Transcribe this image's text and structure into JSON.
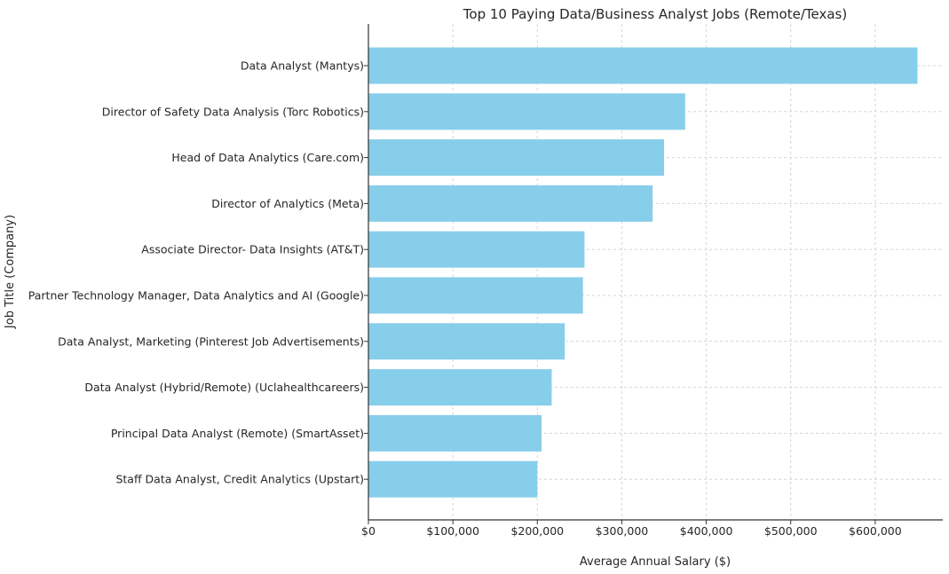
{
  "chart_data": {
    "type": "bar",
    "orientation": "horizontal",
    "title": "Top 10 Paying Data/Business Analyst Jobs (Remote/Texas)",
    "xlabel": "Average Annual Salary ($)",
    "ylabel": "Job Title (Company)",
    "categories": [
      "Data Analyst (Mantys)",
      "Director of Safety Data Analysis (Torc Robotics)",
      "Head of Data Analytics (Care.com)",
      "Director of Analytics (Meta)",
      "Associate Director- Data Insights (AT&T)",
      "Partner Technology Manager, Data Analytics and AI (Google)",
      "Data Analyst, Marketing (Pinterest Job Advertisements)",
      "Data Analyst (Hybrid/Remote) (Uclahealthcareers)",
      "Principal Data Analyst (Remote) (SmartAsset)",
      "Staff Data Analyst, Credit Analytics (Upstart)"
    ],
    "values": [
      650000,
      375000,
      350000,
      336500,
      255829,
      254000,
      232423,
      217000,
      205000,
      200000
    ],
    "xlim": [
      0,
      680000
    ],
    "xticks": [
      0,
      100000,
      200000,
      300000,
      400000,
      500000,
      600000
    ],
    "xtick_labels": [
      "$0",
      "$100,000",
      "$200,000",
      "$300,000",
      "$400,000",
      "$500,000",
      "$600,000"
    ],
    "grid": true,
    "colors": {
      "bar": "#87ceeb",
      "grid": "#d5d5d5",
      "axis": "#333333",
      "text": "#262626"
    }
  }
}
